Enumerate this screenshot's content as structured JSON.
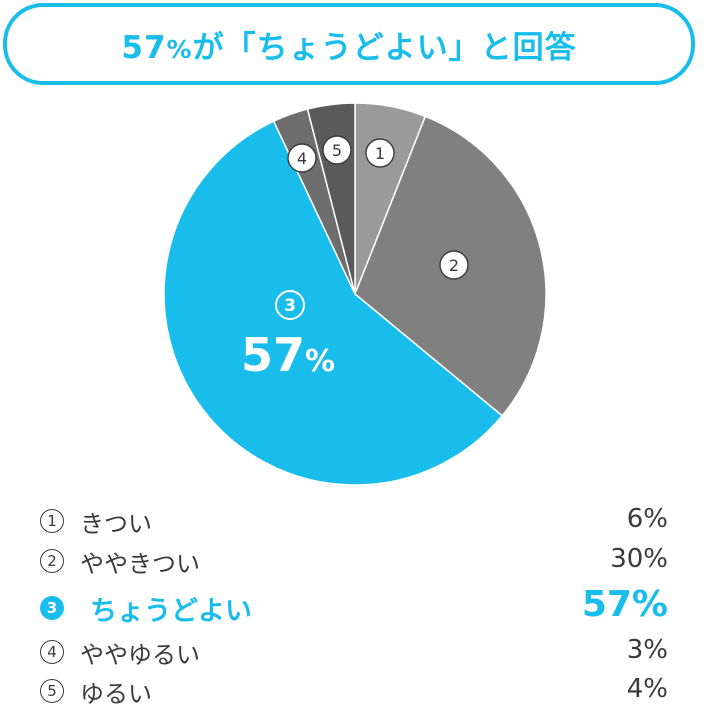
{
  "title": {
    "main": "57",
    "pct": "%",
    "rest": "が「ちょうどよい」と回答"
  },
  "colors": {
    "accent": "#19bdeb",
    "text": "#3a3a3a"
  },
  "chart_data": {
    "type": "pie",
    "slices": [
      {
        "marker": "①",
        "label": "きつい",
        "value": 6,
        "display": "6%",
        "color": "#9a9a9a"
      },
      {
        "marker": "②",
        "label": "ややきつい",
        "value": 30,
        "display": "30%",
        "color": "#808080"
      },
      {
        "marker": "③",
        "label": "ちょうどよい",
        "value": 57,
        "display": "57%",
        "color": "#19bdeb",
        "highlight": true
      },
      {
        "marker": "④",
        "label": "ややゆるい",
        "value": 3,
        "display": "3%",
        "color": "#6e6e6e"
      },
      {
        "marker": "⑤",
        "label": "ゆるい",
        "value": 4,
        "display": "4%",
        "color": "#5a5a5a"
      }
    ],
    "slice_labels": [
      "1",
      "2",
      "3",
      "4",
      "5"
    ],
    "highlight_value": "57",
    "highlight_pct": "%"
  }
}
